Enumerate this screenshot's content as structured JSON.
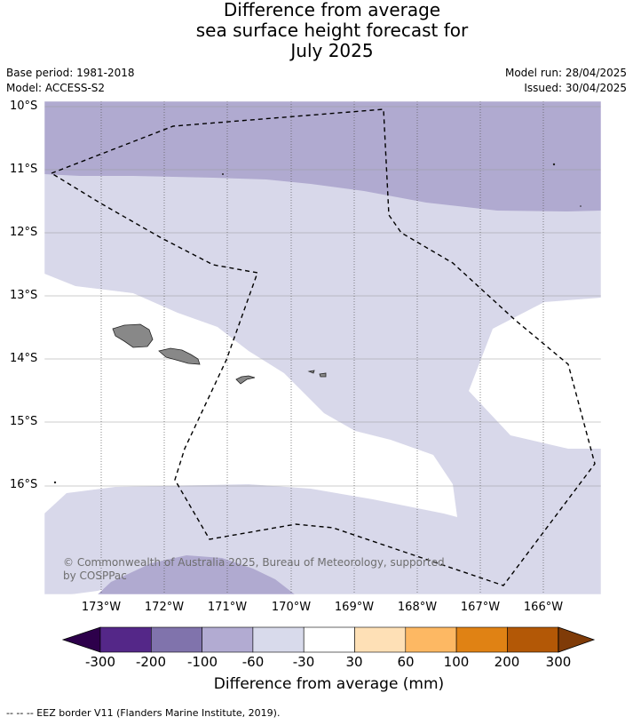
{
  "title": {
    "line1": "Difference from average",
    "line2": "sea surface height forecast for",
    "line3": "July 2025"
  },
  "meta": {
    "base_period": "Base period: 1981-2018",
    "model": "Model: ACCESS-S2",
    "model_run": "Model run: 28/04/2025",
    "issued": "Issued: 30/04/2025"
  },
  "map": {
    "lat_labels": [
      "10°S",
      "11°S",
      "12°S",
      "13°S",
      "14°S",
      "15°S",
      "16°S"
    ],
    "lon_labels": [
      "173°W",
      "172°W",
      "171°W",
      "170°W",
      "169°W",
      "168°W",
      "167°W",
      "166°W"
    ],
    "extent": {
      "lon_min": -173.9,
      "lon_max": -165.1,
      "lat_top": -9.9,
      "lat_bottom": -17.7
    },
    "copyright_line1": "© Commonwealth of Australia 2025, Bureau of Meteorology, supported",
    "copyright_line2": "by COSPPac",
    "colors": {
      "class_neg100_neg60": "#b0aad0",
      "class_neg60_neg30": "#d8d8ea",
      "class_neg30_30": "#ffffff",
      "land": "#888888",
      "eez": "#000000",
      "grid": "#999999"
    }
  },
  "colorbar": {
    "ticks": [
      "-300",
      "-200",
      "-100",
      "-60",
      "-30",
      "30",
      "60",
      "100",
      "200",
      "300"
    ],
    "under_color": "#2d004b",
    "over_color": "#7f3b08",
    "colors": [
      "#542788",
      "#8073ac",
      "#b2abd2",
      "#d8daeb",
      "#ffffff",
      "#fee0b6",
      "#fdb863",
      "#e08214",
      "#b35806"
    ],
    "label": "Difference from average (mm)"
  },
  "footnote": "--  --  -- EEZ border V11 (Flanders Marine Institute, 2019)."
}
